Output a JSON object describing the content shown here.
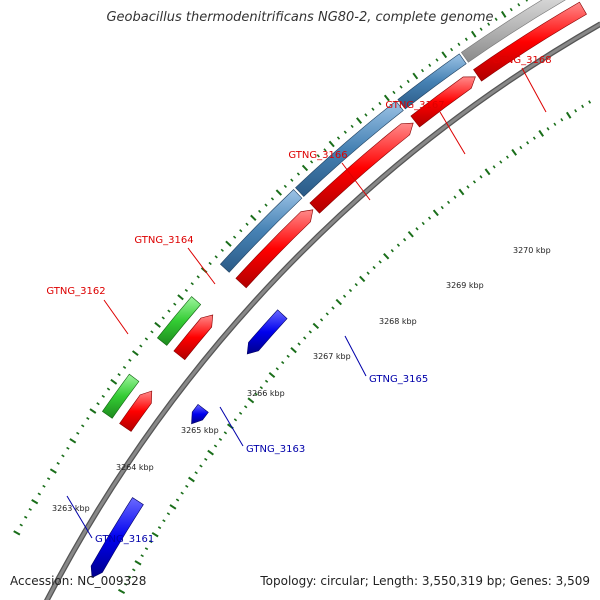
{
  "title": "Geobacillus thermodenitrificans NG80-2, complete genome",
  "footer": {
    "accession": "Accession: NC_009328",
    "summary": "Topology: circular; Length: 3,550,319 bp; Genes: 3,509"
  },
  "colors": {
    "label_forward": "#dd0000",
    "label_reverse": "#0000aa",
    "cds_red": "#ff0000",
    "gene_green": "#33cc33",
    "gene_blue": "#0000ee",
    "gene_steel": "#4682b4",
    "gene_grey": "#bbbbbb",
    "backbone": "#888888",
    "tick_green": "#1a6e1a"
  },
  "scale_ticks": [
    {
      "label": "3263 kbp"
    },
    {
      "label": "3264 kbp"
    },
    {
      "label": "3265 kbp"
    },
    {
      "label": "3266 kbp"
    },
    {
      "label": "3267 kbp"
    },
    {
      "label": "3268 kbp"
    },
    {
      "label": "3269 kbp"
    },
    {
      "label": "3270 kbp"
    }
  ],
  "gene_labels": [
    {
      "text": "GTNG_3161",
      "strand": "reverse"
    },
    {
      "text": "GTNG_3162",
      "strand": "forward"
    },
    {
      "text": "GTNG_3163",
      "strand": "reverse"
    },
    {
      "text": "GTNG_3164",
      "strand": "forward"
    },
    {
      "text": "GTNG_3165",
      "strand": "reverse"
    },
    {
      "text": "GTNG_3166",
      "strand": "forward"
    },
    {
      "text": "GTNG_3167",
      "strand": "forward"
    },
    {
      "text": "GTNG_3168",
      "strand": "forward"
    }
  ]
}
